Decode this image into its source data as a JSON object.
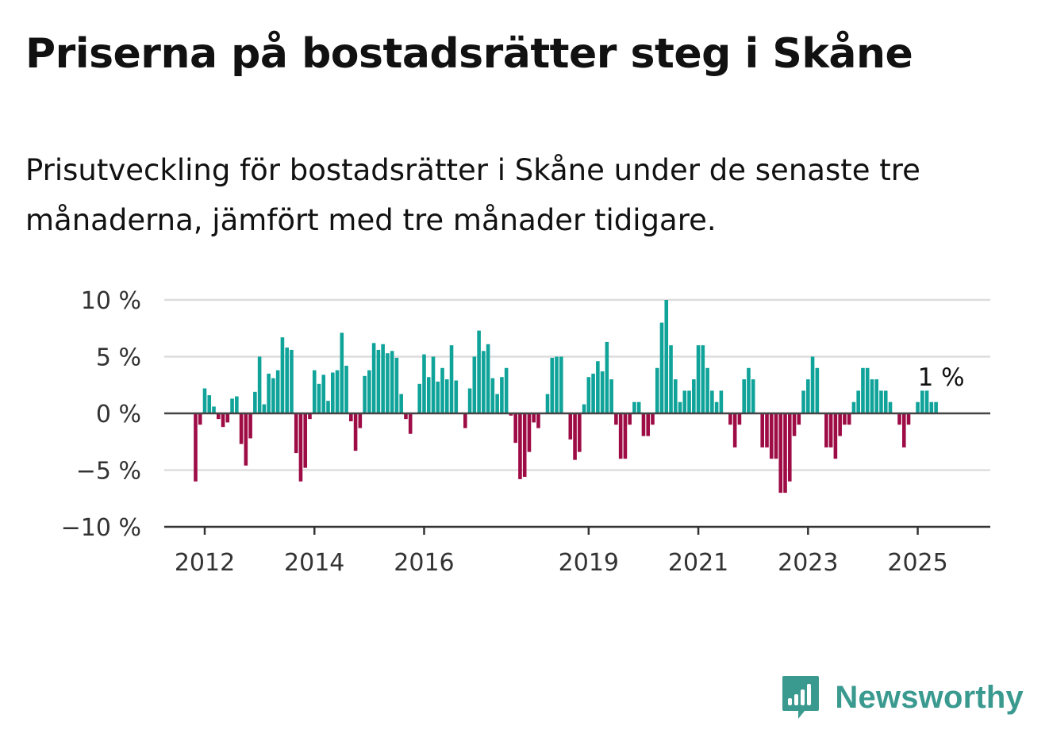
{
  "title": "Priserna på bostadsrätter steg i Skåne",
  "subtitle": "Prisutveckling för bostadsrätter i Skåne under de senaste tre månaderna, jämfört med tre månader tidigare.",
  "brand": "Newsworthy",
  "colors": {
    "positive": "#10a39a",
    "negative": "#9e0c46",
    "brand": "#3a9a8f"
  },
  "chart_data": {
    "type": "bar",
    "ylim": [
      -10,
      10
    ],
    "yticks": [
      {
        "value": 10,
        "label": "10 %"
      },
      {
        "value": 5,
        "label": "5 %"
      },
      {
        "value": 0,
        "label": "0 %"
      },
      {
        "value": -5,
        "label": "−5 %"
      },
      {
        "value": -10,
        "label": "−10 %"
      }
    ],
    "x_start": "2011-11",
    "xticks": [
      {
        "label": "2012",
        "month_index": 2
      },
      {
        "label": "2014",
        "month_index": 26
      },
      {
        "label": "2016",
        "month_index": 50
      },
      {
        "label": "2019",
        "month_index": 86
      },
      {
        "label": "2021",
        "month_index": 110
      },
      {
        "label": "2023",
        "month_index": 134
      },
      {
        "label": "2025",
        "month_index": 158
      }
    ],
    "grid": true,
    "annotation": {
      "text": "1 %",
      "month_index": 164
    },
    "values": [
      -6,
      -1,
      2.2,
      1.6,
      0.6,
      -0.5,
      -1.2,
      -0.8,
      1.3,
      1.5,
      -2.7,
      -4.6,
      -2.2,
      1.9,
      5,
      0.8,
      3.5,
      3.1,
      3.8,
      6.7,
      5.8,
      5.6,
      -3.5,
      -6,
      -4.8,
      -0.5,
      3.8,
      2.6,
      3.4,
      1.1,
      3.6,
      3.8,
      7.1,
      4.2,
      -0.7,
      -3.3,
      -1.3,
      3.3,
      3.8,
      6.2,
      5.6,
      6.1,
      5.3,
      5.5,
      4.9,
      1.7,
      -0.5,
      -1.8,
      0,
      2.6,
      5.2,
      3.2,
      5,
      2.8,
      4,
      3,
      6,
      2.9,
      0,
      -1.3,
      2.2,
      5,
      7.3,
      5.5,
      6.1,
      3.1,
      1.7,
      3.2,
      4,
      -0.2,
      -2.6,
      -5.8,
      -5.6,
      -3.4,
      -0.8,
      -1.3,
      0,
      1.7,
      4.9,
      5,
      5,
      0,
      -2.3,
      -4.1,
      -3.4,
      0.8,
      3.2,
      3.5,
      4.6,
      3.7,
      6.3,
      3,
      -1,
      -4,
      -4,
      -1,
      1,
      1,
      -2,
      -2,
      -1,
      4,
      8,
      10,
      6,
      3,
      1,
      2,
      2,
      3,
      6,
      6,
      4,
      2,
      1,
      2,
      0,
      -1,
      -3,
      -1,
      3,
      4,
      3,
      0,
      -3,
      -3,
      -4,
      -4,
      -7,
      -7,
      -6,
      -2,
      -1,
      2,
      3,
      5,
      4,
      0,
      -3,
      -3,
      -4,
      -2,
      -1,
      -1,
      1,
      2,
      4,
      4,
      3,
      3,
      2,
      2,
      1,
      0,
      -1,
      -3,
      -1,
      0,
      1,
      2,
      2,
      1,
      1
    ]
  }
}
